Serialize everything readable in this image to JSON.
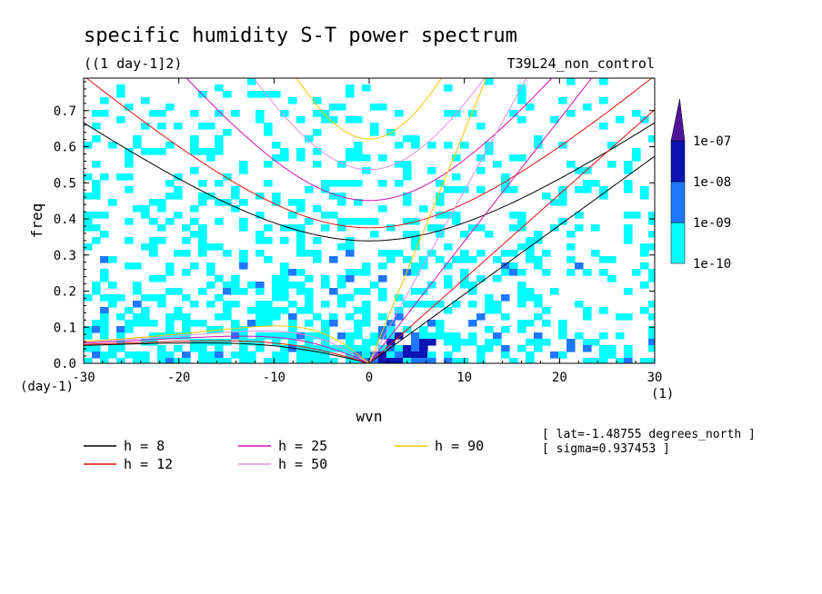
{
  "chart_data": {
    "type": "heatmap",
    "title": "specific humidity S-T power spectrum",
    "units": "((1 day-1]2)",
    "experiment": "T39L24_non_control",
    "xlabel": "wvn",
    "ylabel": "freq",
    "x_unit_label": "(1)",
    "y_unit_label": "(day-1)",
    "xlim": [
      -30,
      30
    ],
    "ylim": [
      0,
      0.79
    ],
    "xticks": [
      -30,
      -20,
      -10,
      0,
      10,
      20,
      30
    ],
    "yticks": [
      0.0,
      0.1,
      0.2,
      0.3,
      0.4,
      0.5,
      0.6,
      0.7
    ],
    "colorbar": {
      "levels": [
        "1e-10",
        "1e-09",
        "1e-08",
        "1e-07"
      ],
      "colors": [
        "#00ffff",
        "#1e78ff",
        "#0a14b4",
        "#50149a"
      ],
      "extend": "max"
    },
    "dispersion_curves": [
      {
        "label": "h =  8",
        "h": 8,
        "color": "#000000"
      },
      {
        "label": "h = 12",
        "h": 12,
        "color": "#e01010"
      },
      {
        "label": "h = 25",
        "h": 25,
        "color": "#d010b0"
      },
      {
        "label": "h = 50",
        "h": 50,
        "color": "#e090e0"
      },
      {
        "label": "h = 90",
        "h": 90,
        "color": "#f0c800"
      }
    ],
    "annotations": [
      "[ lat=-1.48755 degrees_north ]",
      "[ sigma=0.937453 ]"
    ]
  }
}
